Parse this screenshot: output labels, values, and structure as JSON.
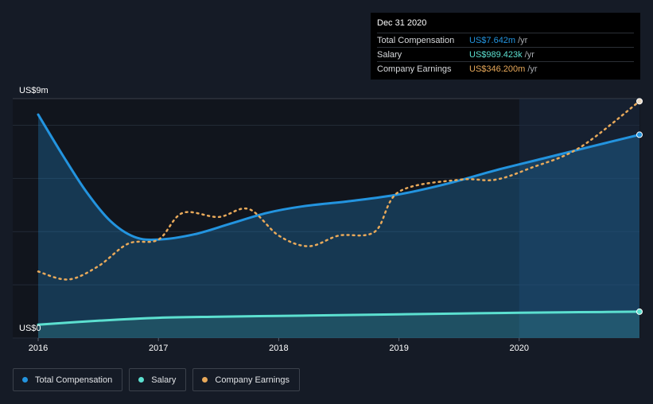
{
  "tooltip": {
    "date": "Dec 31 2020",
    "rows": [
      {
        "label": "Total Compensation",
        "value": "US$7.642m",
        "unit": "/yr",
        "color": "#2394df"
      },
      {
        "label": "Salary",
        "value": "US$989.423k",
        "unit": "/yr",
        "color": "#5ce0d0"
      },
      {
        "label": "Company Earnings",
        "value": "US$346.200m",
        "unit": "/yr",
        "color": "#e8a95a"
      }
    ]
  },
  "legend": [
    {
      "label": "Total Compensation",
      "color": "#2394df"
    },
    {
      "label": "Salary",
      "color": "#5ce0d0"
    },
    {
      "label": "Company Earnings",
      "color": "#e8a95a"
    }
  ],
  "chart_data": {
    "type": "line",
    "y_top_label": "US$9m",
    "y_bottom_label": "US$0",
    "ylim": [
      0,
      9
    ],
    "xlim": [
      2016,
      2021.0
    ],
    "x_ticks": [
      "2016",
      "2017",
      "2018",
      "2019",
      "2020"
    ],
    "x_tick_values": [
      2016,
      2017,
      2018,
      2019,
      2020
    ],
    "highlight_start": 2020,
    "series": [
      {
        "name": "Total Compensation",
        "color": "#2394df",
        "style": "solid",
        "x": [
          2016.0,
          2016.2,
          2016.4,
          2016.6,
          2016.8,
          2017.0,
          2017.3,
          2017.6,
          2017.9,
          2018.2,
          2018.6,
          2019.0,
          2019.4,
          2019.8,
          2020.2,
          2020.6,
          2021.0
        ],
        "y": [
          8.4,
          6.9,
          5.5,
          4.4,
          3.8,
          3.7,
          3.9,
          4.3,
          4.7,
          4.95,
          5.15,
          5.4,
          5.8,
          6.3,
          6.75,
          7.2,
          7.642
        ]
      },
      {
        "name": "Salary",
        "color": "#5ce0d0",
        "style": "solid",
        "x": [
          2016.0,
          2016.5,
          2017.0,
          2017.5,
          2018.0,
          2018.5,
          2019.0,
          2019.5,
          2020.0,
          2020.5,
          2021.0
        ],
        "y": [
          0.5,
          0.65,
          0.76,
          0.8,
          0.83,
          0.86,
          0.89,
          0.92,
          0.95,
          0.97,
          0.989
        ]
      }
    ],
    "earnings_series": {
      "name": "Company Earnings",
      "color": "#e8a95a",
      "style": "dotted",
      "x": [
        2016.0,
        2016.25,
        2016.5,
        2016.75,
        2017.0,
        2017.2,
        2017.5,
        2017.75,
        2018.0,
        2018.25,
        2018.5,
        2018.8,
        2019.0,
        2019.5,
        2019.8,
        2020.1,
        2020.5,
        2021.0
      ],
      "y_scaled": [
        2.5,
        2.2,
        2.7,
        3.55,
        3.7,
        4.7,
        4.55,
        4.85,
        3.85,
        3.45,
        3.85,
        4.0,
        5.5,
        5.95,
        5.95,
        6.4,
        7.15,
        8.9
      ],
      "latest": "US$346.200m"
    }
  }
}
